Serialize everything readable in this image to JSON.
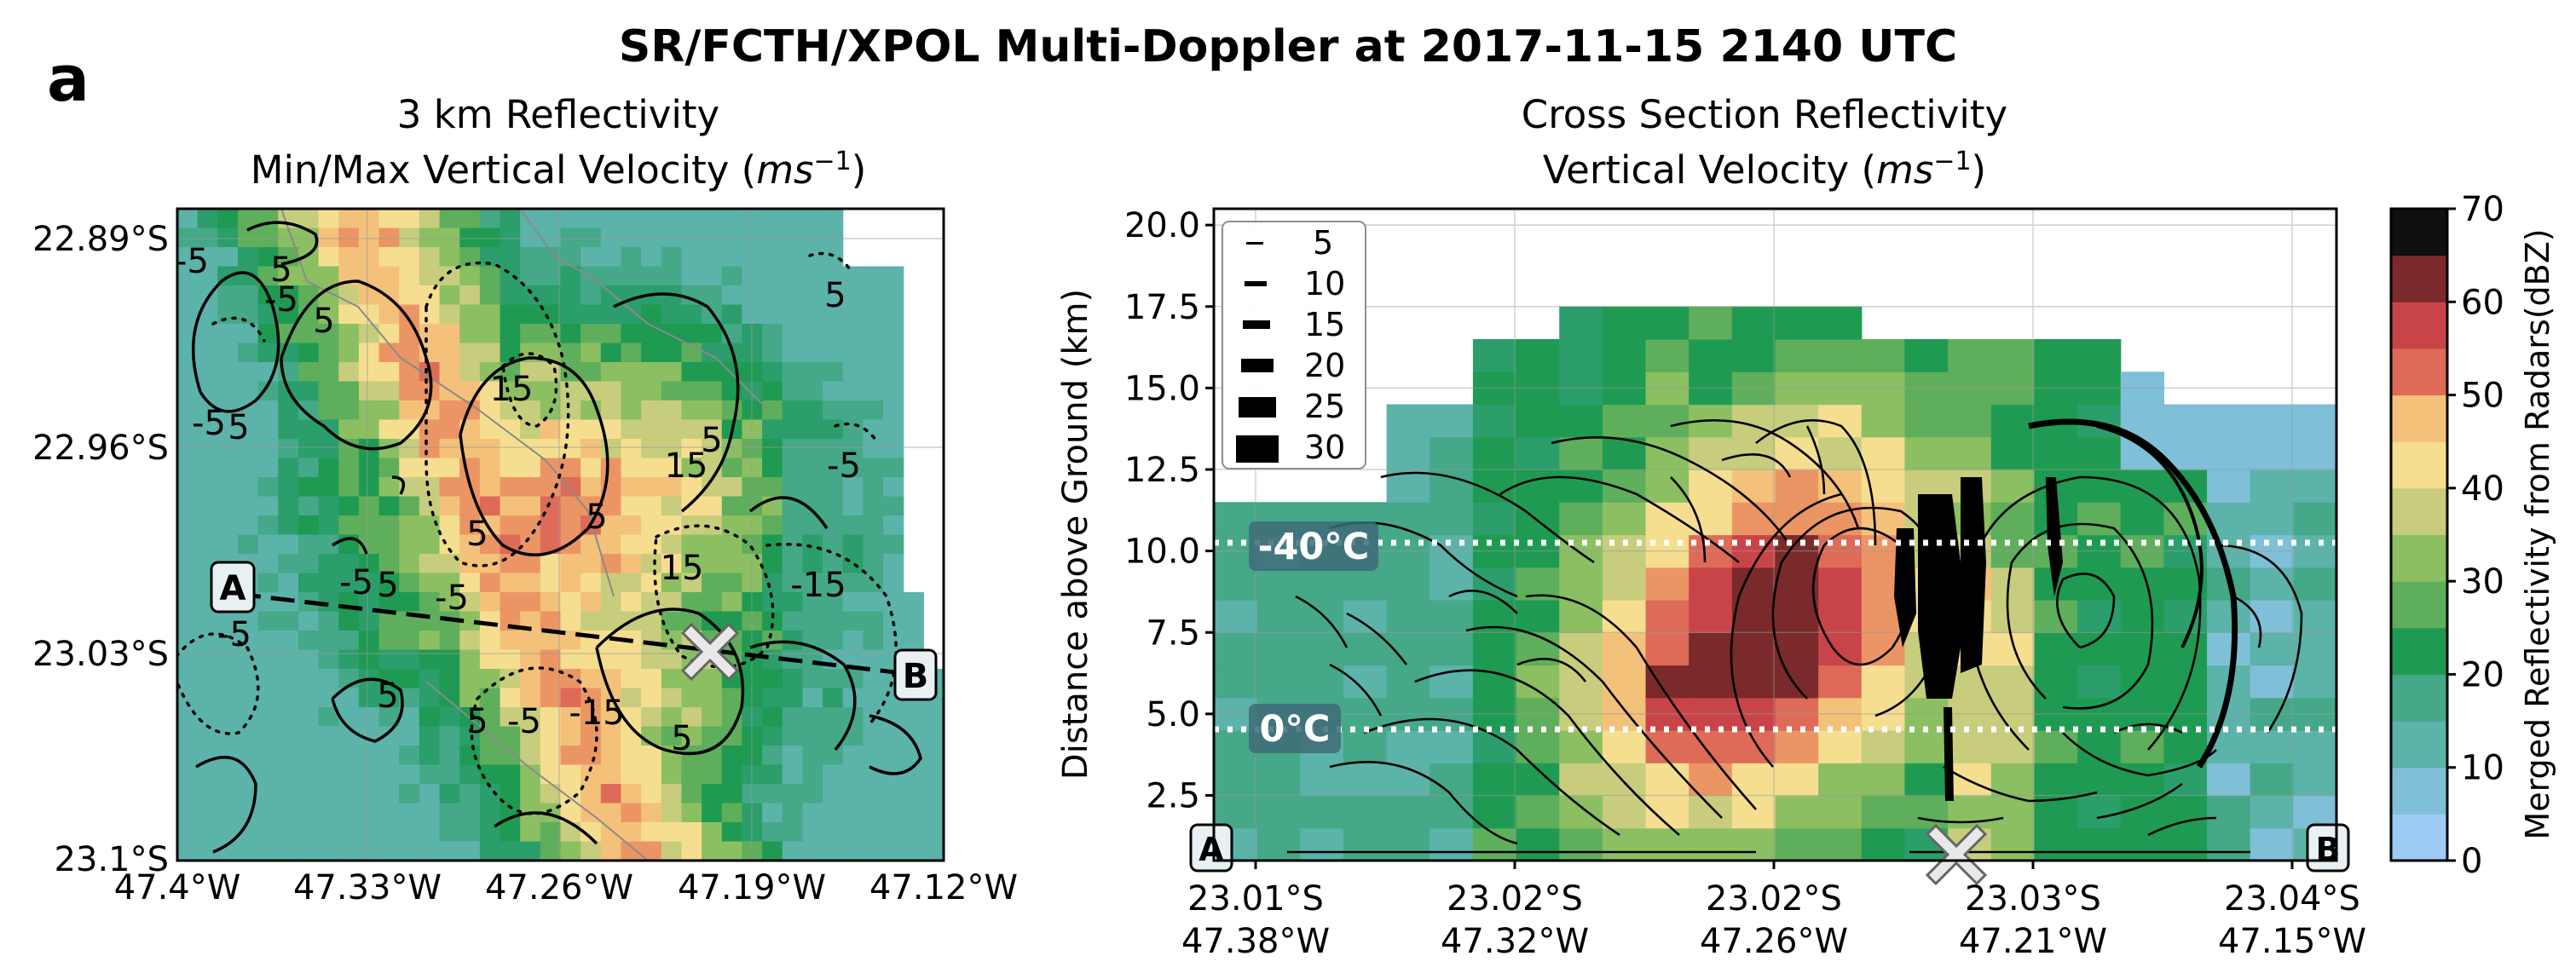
{
  "figure": {
    "suptitle": "SR/FCTH/XPOL Multi-Doppler at 2017-11-15 2140 UTC",
    "panel_label": "a"
  },
  "colors": {
    "cmap": [
      "#9ecbf5",
      "#7fbfd8",
      "#5cb3a9",
      "#44a889",
      "#2b9e6b",
      "#1f9a52",
      "#5fae5b",
      "#8bbf62",
      "#c7cd7d",
      "#f6de90",
      "#f4c17b",
      "#eb9565",
      "#dd6b58",
      "#c94448",
      "#7a2a2a",
      "#101010"
    ],
    "contour": "#000000",
    "freezing_line": "#ffffff",
    "label_box": "#3e6b78"
  },
  "left_panel": {
    "title_line1": "3 km Reflectivity",
    "title_line2": "Min/Max Vertical Velocity (",
    "title_unit": "ms",
    "title_exp": "−1",
    "title_close": ")",
    "xticks": [
      "47.4°W",
      "47.33°W",
      "47.26°W",
      "47.19°W",
      "47.12°W"
    ],
    "yticks": [
      "22.89°S",
      "22.96°S",
      "23.03°S",
      "23.1°S"
    ],
    "contour_labels": [
      "-5",
      "5",
      "-5",
      "5",
      "-5",
      "5",
      "15",
      "-5",
      "-5",
      "5",
      "-5",
      "5",
      "15",
      "-15",
      "5",
      "5",
      "5",
      "-5",
      "-15",
      "5",
      "5",
      "5",
      "15",
      "-5"
    ],
    "point_A": "A",
    "point_B": "B",
    "chart_data": {
      "type": "heatmap",
      "title": "3 km Reflectivity Min/Max Vertical Velocity (ms⁻¹)",
      "x_range_deg_W": [
        47.4,
        47.12
      ],
      "y_range_deg_S": [
        22.89,
        23.1
      ],
      "contour_levels": [
        -15,
        -5,
        5,
        15
      ],
      "cross_section_line": {
        "A_lon": -47.38,
        "A_lat": -23.01,
        "B_lon": -47.13,
        "B_lat": -23.04
      }
    }
  },
  "right_panel": {
    "title_line1": "Cross Section Reflectivity",
    "title_line2": "Vertical Velocity (",
    "title_unit": "ms",
    "title_exp": "−1",
    "title_close": ")",
    "ylabel": "Distance above Ground (km)",
    "yticks": [
      "2.5",
      "5.0",
      "7.5",
      "10.0",
      "12.5",
      "15.0",
      "17.5",
      "20.0"
    ],
    "xticks_lat": [
      "23.01°S",
      "23.02°S",
      "23.02°S",
      "23.03°S",
      "23.04°S"
    ],
    "xticks_lon": [
      "47.38°W",
      "47.32°W",
      "47.26°W",
      "47.21°W",
      "47.15°W"
    ],
    "legend": [
      "5",
      "10",
      "15",
      "20",
      "25",
      "30"
    ],
    "iso_minus40": "-40°C",
    "iso_zero": "0°C",
    "point_A": "A",
    "point_B": "B",
    "chart_data": {
      "type": "heatmap",
      "title": "Cross Section Reflectivity Vertical Velocity (ms⁻¹)",
      "ylabel": "Distance above Ground (km)",
      "ylim": [
        0.5,
        20.5
      ],
      "isotherms_km": {
        "-40°C": 10.2,
        "0°C": 4.5
      },
      "streamline_speed_legend": [
        5,
        10,
        15,
        20,
        25,
        30
      ],
      "column_top_km": [
        11.5,
        11.5,
        14.5,
        14.5,
        15.5,
        16.5,
        17.5,
        17.5,
        17.5,
        17.5,
        17.5,
        16.5,
        16.5,
        16.5,
        16.5,
        15.5,
        14.5,
        14.5
      ],
      "max_reflectivity_dBZ": 65,
      "max_reflectivity_height_km": [
        7,
        10
      ]
    }
  },
  "colorbar": {
    "label": "Merged Reflectivity from Radars(dBZ)",
    "ticks": [
      "0",
      "10",
      "20",
      "30",
      "40",
      "50",
      "60",
      "70"
    ],
    "chart_data": {
      "type": "colorbar",
      "range": [
        0,
        70
      ],
      "step": 5
    }
  }
}
